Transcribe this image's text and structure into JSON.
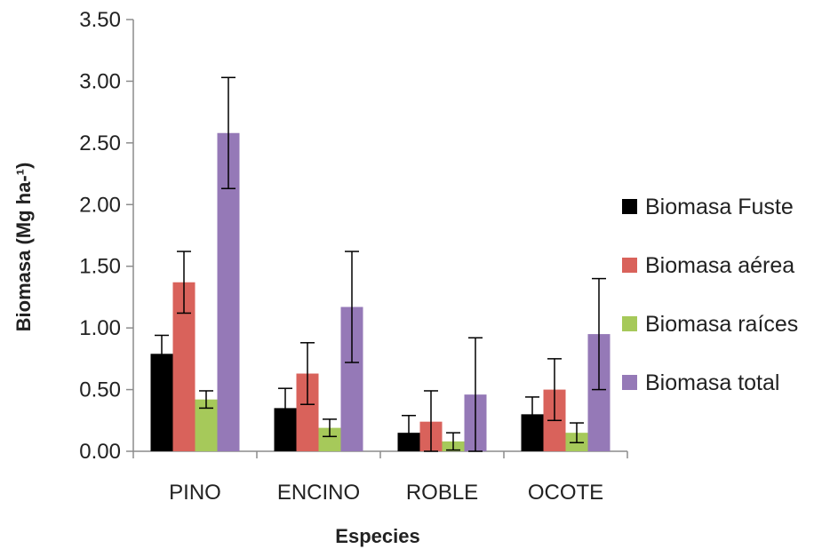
{
  "chart_data": {
    "type": "bar",
    "title": "",
    "xlabel": "Especies",
    "ylabel": "Biomasa (Mg ha-¹)",
    "ylim": [
      0,
      3.5
    ],
    "yticks": [
      "0.00",
      "0.50",
      "1.00",
      "1.50",
      "2.00",
      "2.50",
      "3.00",
      "3.50"
    ],
    "categories": [
      "PINO",
      "ENCINO",
      "ROBLE",
      "OCOTE"
    ],
    "legend_position": "right",
    "grid": false,
    "series": [
      {
        "name": "Biomasa Fuste",
        "color": "#000000",
        "values": [
          0.79,
          0.35,
          0.15,
          0.3
        ],
        "errors": [
          0.15,
          0.16,
          0.14,
          0.14
        ]
      },
      {
        "name": "Biomasa aérea",
        "color": "#d9625b",
        "values": [
          1.37,
          0.63,
          0.24,
          0.5
        ],
        "errors": [
          0.25,
          0.25,
          0.25,
          0.25
        ]
      },
      {
        "name": "Biomasa raíces",
        "color": "#a6c95a",
        "values": [
          0.42,
          0.19,
          0.08,
          0.15
        ],
        "errors": [
          0.07,
          0.07,
          0.07,
          0.08
        ]
      },
      {
        "name": "Biomasa total",
        "color": "#9579b7",
        "values": [
          2.58,
          1.17,
          0.46,
          0.95
        ],
        "errors": [
          0.45,
          0.45,
          0.46,
          0.45
        ]
      }
    ]
  }
}
